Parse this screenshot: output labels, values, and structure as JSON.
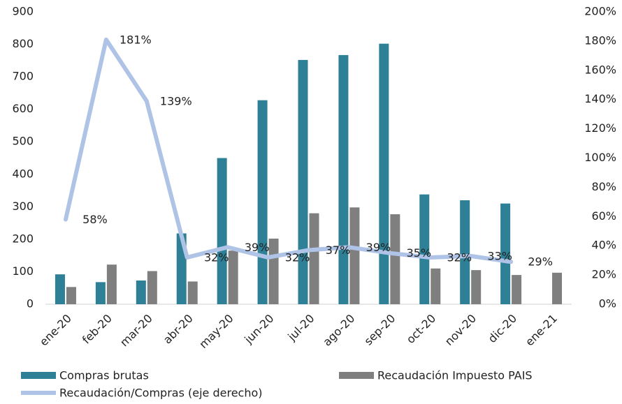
{
  "chart_data": {
    "type": "bar",
    "categories": [
      "ene-20",
      "feb-20",
      "mar-20",
      "abr-20",
      "may-20",
      "jun-20",
      "jul-20",
      "ago-20",
      "sep-20",
      "oct-20",
      "nov-20",
      "dic-20",
      "ene-21"
    ],
    "series": [
      {
        "name": "Compras brutas",
        "color": "#2e8096",
        "type": "bar",
        "values": [
          92,
          68,
          73,
          218,
          450,
          628,
          752,
          767,
          802,
          338,
          320,
          310,
          null
        ]
      },
      {
        "name": "Recaudación Impuesto PAIS",
        "color": "#7f7f7f",
        "type": "bar",
        "values": [
          53,
          122,
          102,
          70,
          165,
          202,
          280,
          298,
          277,
          110,
          105,
          90,
          97
        ]
      },
      {
        "name": "Recaudación/Compras (eje derecho)",
        "color": "#aec3e6",
        "type": "line",
        "axis": "y2",
        "values": [
          58,
          181,
          139,
          32,
          39,
          32,
          37,
          39,
          35,
          32,
          33,
          29,
          null
        ],
        "value_labels": [
          "58%",
          "181%",
          "139%",
          "32%",
          "39%",
          "32%",
          "37%",
          "39%",
          "35%",
          "32%",
          "33%",
          "29%",
          null
        ]
      }
    ],
    "ylim": [
      0,
      900
    ],
    "yticks": [
      0,
      100,
      200,
      300,
      400,
      500,
      600,
      700,
      800,
      900
    ],
    "y2lim": [
      0,
      200
    ],
    "y2ticks": [
      {
        "value": 0,
        "label": "0%"
      },
      {
        "value": 20,
        "label": "20%"
      },
      {
        "value": 40,
        "label": "40%"
      },
      {
        "value": 60,
        "label": "60%"
      },
      {
        "value": 80,
        "label": "80%"
      },
      {
        "value": 100,
        "label": "100%"
      },
      {
        "value": 120,
        "label": "120%"
      },
      {
        "value": 140,
        "label": "140%"
      },
      {
        "value": 160,
        "label": "160%"
      },
      {
        "value": 180,
        "label": "180%"
      },
      {
        "value": 200,
        "label": "200%"
      }
    ],
    "grid": false,
    "legend": "bottom"
  }
}
